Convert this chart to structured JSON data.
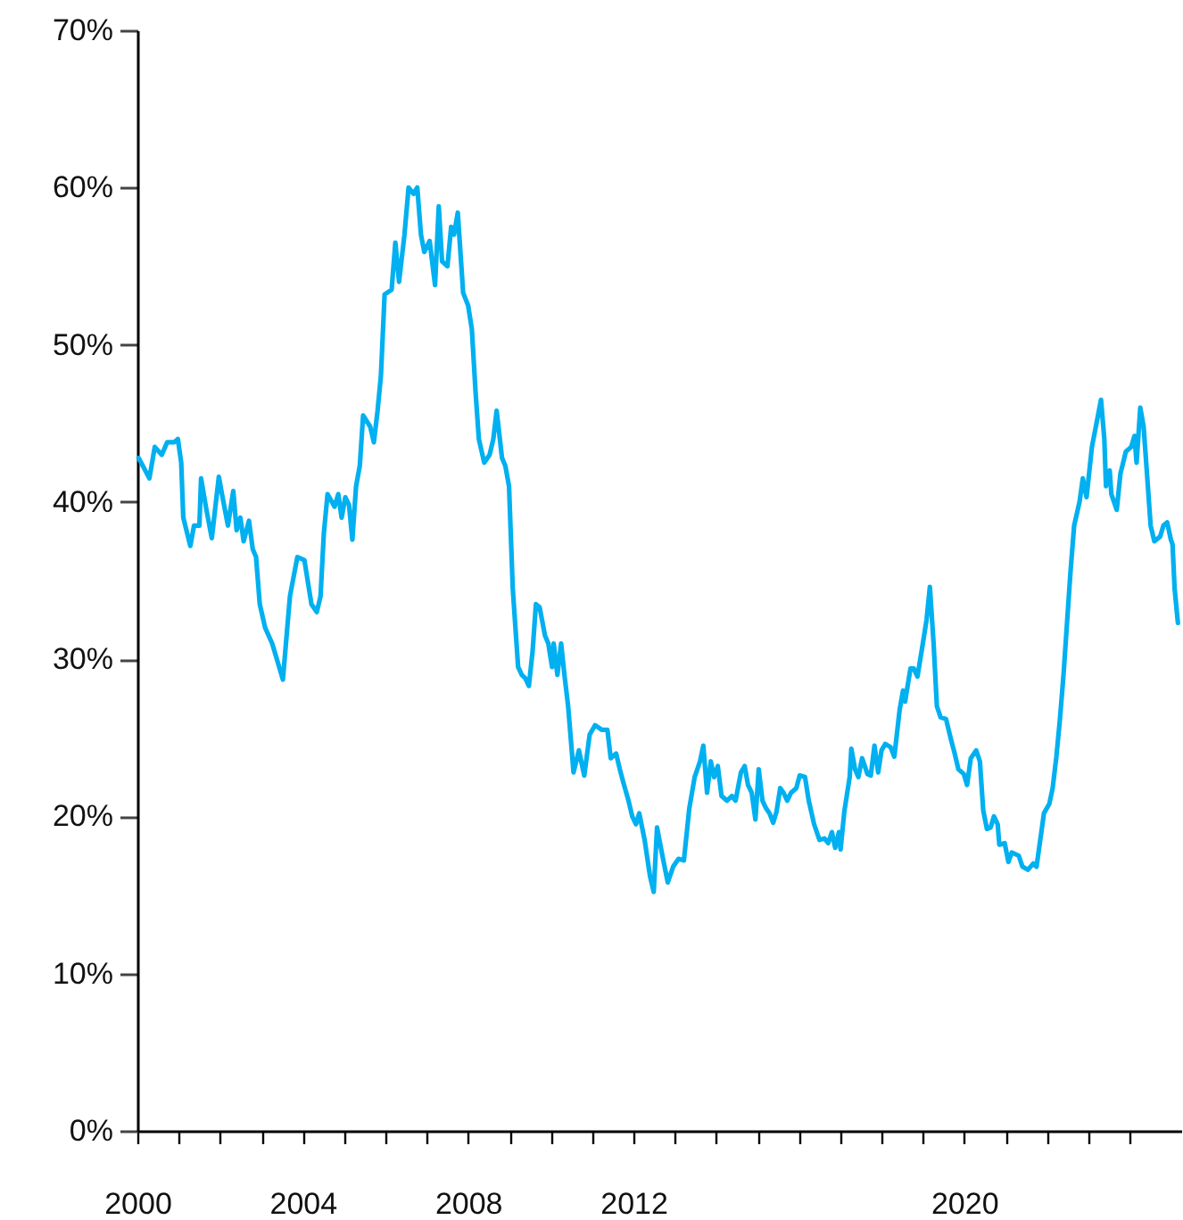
{
  "chart_data": {
    "type": "line",
    "x": [
      2000.03,
      2000.29,
      2000.42,
      2000.59,
      2000.72,
      2000.89,
      2000.98,
      2001.06,
      2001.11,
      2001.28,
      2001.37,
      2001.5,
      2001.54,
      2001.67,
      2001.8,
      2001.97,
      2002.06,
      2002.19,
      2002.32,
      2002.4,
      2002.49,
      2002.57,
      2002.7,
      2002.79,
      2002.87,
      2002.96,
      2003.09,
      2003.26,
      2003.52,
      2003.69,
      2003.87,
      2004.04,
      2004.21,
      2004.34,
      2004.43,
      2004.51,
      2004.6,
      2004.77,
      2004.86,
      2004.94,
      2005.03,
      2005.12,
      2005.2,
      2005.29,
      2005.38,
      2005.46,
      2005.63,
      2005.72,
      2005.81,
      2005.89,
      2005.98,
      2006.15,
      2006.24,
      2006.33,
      2006.46,
      2006.56,
      2006.68,
      2006.77,
      2006.86,
      2006.94,
      2007.07,
      2007.2,
      2007.29,
      2007.37,
      2007.5,
      2007.59,
      2007.66,
      2007.75,
      2007.88,
      2008.0,
      2008.09,
      2008.18,
      2008.26,
      2008.39,
      2008.52,
      2008.61,
      2008.69,
      2008.82,
      2008.9,
      2008.99,
      2009.08,
      2009.21,
      2009.3,
      2009.38,
      2009.47,
      2009.56,
      2009.64,
      2009.73,
      2009.86,
      2009.94,
      2010.03,
      2010.07,
      2010.16,
      2010.25,
      2010.33,
      2010.42,
      2010.55,
      2010.68,
      2010.81,
      2010.94,
      2011.07,
      2011.24,
      2011.37,
      2011.45,
      2011.58,
      2011.67,
      2011.75,
      2011.88,
      2011.97,
      2012.06,
      2012.14,
      2012.27,
      2012.4,
      2012.49,
      2012.57,
      2012.7,
      2012.83,
      2012.96,
      2013.09,
      2013.22,
      2013.35,
      2013.48,
      2013.61,
      2013.69,
      2013.78,
      2013.87,
      2013.95,
      2014.04,
      2014.13,
      2014.26,
      2014.38,
      2014.47,
      2014.6,
      2014.69,
      2014.77,
      2014.86,
      2014.95,
      2015.03,
      2015.12,
      2015.21,
      2015.29,
      2015.38,
      2015.46,
      2015.55,
      2015.63,
      2015.72,
      2015.81,
      2015.94,
      2016.02,
      2016.15,
      2016.24,
      2016.37,
      2016.5,
      2016.62,
      2016.71,
      2016.8,
      2016.88,
      2016.97,
      2017.01,
      2017.1,
      2017.23,
      2017.27,
      2017.36,
      2017.44,
      2017.53,
      2017.66,
      2017.74,
      2017.83,
      2017.92,
      2018.0,
      2018.09,
      2018.22,
      2018.31,
      2018.44,
      2018.52,
      2018.57,
      2018.7,
      2018.78,
      2018.87,
      2019.0,
      2019.09,
      2019.17,
      2019.26,
      2019.34,
      2019.43,
      2019.56,
      2019.69,
      2019.77,
      2019.86,
      2019.99,
      2020.07,
      2020.16,
      2020.29,
      2020.38,
      2020.46,
      2020.55,
      2020.64,
      2020.72,
      2020.81,
      2020.85,
      2020.98,
      2021.07,
      2021.15,
      2021.32,
      2021.41,
      2021.54,
      2021.67,
      2021.75,
      2021.84,
      2021.93,
      2022.06,
      2022.14,
      2022.23,
      2022.31,
      2022.4,
      2022.57,
      2022.66,
      2022.79,
      2022.87,
      2022.96,
      2023.09,
      2023.31,
      2023.39,
      2023.43,
      2023.52,
      2023.56,
      2023.69,
      2023.78,
      2023.91,
      2024.04,
      2024.12,
      2024.17,
      2024.26,
      2024.34,
      2024.43,
      2024.51,
      2024.6,
      2024.74,
      2024.82,
      2024.91,
      2025.0,
      2025.04,
      2025.09,
      2025.17
    ],
    "values": [
      42.8,
      41.5,
      43.5,
      43.0,
      43.8,
      43.8,
      44.0,
      42.5,
      39.0,
      37.2,
      38.5,
      38.5,
      41.5,
      39.5,
      37.7,
      41.6,
      40.3,
      38.5,
      40.7,
      38.2,
      39.0,
      37.5,
      38.8,
      37.0,
      36.5,
      33.5,
      32.0,
      31.0,
      28.7,
      34.0,
      36.5,
      36.3,
      33.5,
      33.0,
      34.0,
      38.0,
      40.5,
      39.7,
      40.5,
      39.0,
      40.3,
      39.8,
      37.6,
      41.0,
      42.3,
      45.5,
      44.8,
      43.8,
      45.8,
      48.0,
      53.2,
      53.5,
      56.5,
      54.0,
      57.0,
      60.0,
      59.6,
      60.0,
      57.0,
      55.9,
      56.6,
      53.8,
      58.8,
      55.3,
      55.0,
      57.5,
      57.0,
      58.4,
      53.3,
      52.5,
      51.0,
      47.0,
      44.0,
      42.5,
      43.0,
      44.0,
      45.8,
      42.8,
      42.3,
      41.0,
      34.5,
      29.5,
      29.0,
      28.8,
      28.3,
      30.5,
      33.5,
      33.3,
      31.5,
      31.0,
      29.5,
      31.0,
      29.0,
      31.0,
      29.0,
      27.0,
      22.8,
      24.2,
      22.6,
      25.2,
      25.8,
      25.5,
      25.5,
      23.7,
      24.0,
      23.0,
      22.2,
      21.0,
      20.0,
      19.5,
      20.2,
      18.5,
      16.2,
      15.2,
      19.3,
      17.5,
      15.8,
      16.8,
      17.3,
      17.2,
      20.5,
      22.5,
      23.5,
      24.5,
      21.5,
      23.5,
      22.5,
      23.2,
      21.3,
      21.0,
      21.3,
      21.0,
      22.8,
      23.2,
      22.0,
      21.5,
      19.8,
      23.0,
      21.0,
      20.5,
      20.2,
      19.6,
      20.3,
      21.8,
      21.5,
      21.0,
      21.5,
      21.8,
      22.6,
      22.5,
      21.0,
      19.5,
      18.5,
      18.6,
      18.3,
      19.0,
      18.0,
      19.0,
      17.9,
      20.3,
      22.5,
      24.3,
      23.0,
      22.5,
      23.7,
      22.7,
      22.6,
      24.5,
      22.8,
      24.2,
      24.6,
      24.4,
      23.8,
      26.8,
      28.0,
      27.3,
      29.4,
      29.4,
      28.9,
      31.0,
      32.5,
      34.6,
      31.0,
      27.0,
      26.3,
      26.2,
      24.8,
      24.0,
      23.0,
      22.7,
      22.0,
      23.7,
      24.2,
      23.5,
      20.4,
      19.2,
      19.3,
      20.0,
      19.5,
      18.2,
      18.3,
      17.1,
      17.7,
      17.5,
      16.8,
      16.6,
      17.0,
      16.8,
      18.5,
      20.2,
      20.8,
      21.8,
      23.8,
      26.0,
      28.9,
      35.5,
      38.5,
      40.0,
      41.5,
      40.3,
      43.5,
      46.5,
      44.0,
      41.0,
      42.0,
      40.5,
      39.5,
      41.8,
      43.2,
      43.5,
      44.2,
      42.5,
      46.0,
      44.8,
      41.5,
      38.5,
      37.5,
      37.8,
      38.5,
      38.7,
      37.6,
      37.3,
      34.5,
      32.3
    ],
    "color": "#00b0f0",
    "xlim": [
      2000,
      2025.25
    ],
    "xticks": [
      2000,
      {
        "value": 2001,
        "label": null
      },
      {
        "value": 2002,
        "label": null
      },
      {
        "value": 2003,
        "label": null
      },
      2004,
      {
        "value": 2005,
        "label": null
      },
      {
        "value": 2006,
        "label": null
      },
      {
        "value": 2007,
        "label": null
      },
      2008,
      {
        "value": 2009,
        "label": null
      },
      {
        "value": 2010,
        "label": null
      },
      {
        "value": 2011,
        "label": null
      },
      2012,
      {
        "value": 2013,
        "label": null
      },
      {
        "value": 2014,
        "label": null
      },
      {
        "value": 2015,
        "label": null
      },
      {
        "value": 2016,
        "label": null
      },
      {
        "value": 2017,
        "label": null
      },
      {
        "value": 2018,
        "label": null
      },
      {
        "value": 2019,
        "label": null
      },
      2020,
      {
        "value": 2021,
        "label": null
      },
      {
        "value": 2022,
        "label": null
      },
      {
        "value": 2023,
        "label": null
      },
      {
        "value": 2024,
        "label": null
      }
    ],
    "ylim": [
      0,
      70
    ],
    "yticks": [
      {
        "value": 0,
        "label": "0%"
      },
      {
        "value": 10,
        "label": "10%"
      },
      {
        "value": 20,
        "label": "20%"
      },
      {
        "value": 30,
        "label": "30%"
      },
      {
        "value": 40,
        "label": "40%"
      },
      {
        "value": 50,
        "label": "50%"
      },
      {
        "value": 60,
        "label": "60%"
      },
      {
        "value": 70,
        "label": "70%"
      }
    ]
  }
}
